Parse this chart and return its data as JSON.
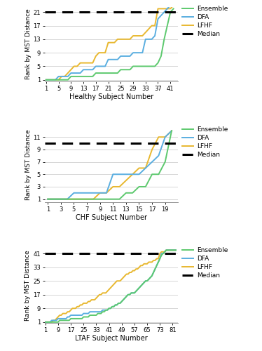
{
  "panel1": {
    "title": "Healthy Subject Number",
    "ylabel": "Rank by MST Distance",
    "n_subjects": 42,
    "median_line": 21,
    "yticks": [
      1,
      5,
      9,
      13,
      17,
      21
    ],
    "xticks": [
      1,
      5,
      9,
      13,
      17,
      21,
      25,
      29,
      33,
      37,
      41
    ],
    "xlim": [
      0.5,
      43.5
    ],
    "ylim": [
      0.5,
      22.5
    ],
    "ensemble_color": "#5dc96e",
    "dfa_color": "#5aaee0",
    "lfhf_color": "#e8b830",
    "median_color": "#000000",
    "ensemble_x": [
      1,
      2,
      3,
      4,
      5,
      6,
      7,
      8,
      9,
      10,
      11,
      12,
      13,
      14,
      15,
      16,
      17,
      18,
      19,
      20,
      21,
      22,
      23,
      24,
      25,
      26,
      27,
      28,
      29,
      30,
      31,
      32,
      33,
      34,
      35,
      36,
      37,
      38,
      39,
      40,
      41,
      42
    ],
    "ensemble_y": [
      1,
      1,
      1,
      1,
      1,
      1,
      1,
      1,
      2,
      2,
      2,
      2,
      2,
      2,
      2,
      2,
      3,
      3,
      3,
      3,
      3,
      3,
      3,
      3,
      4,
      4,
      4,
      4,
      5,
      5,
      5,
      5,
      5,
      5,
      5,
      5,
      6,
      8,
      13,
      17,
      21,
      22
    ],
    "dfa_x": [
      1,
      2,
      3,
      4,
      5,
      6,
      7,
      8,
      9,
      10,
      11,
      12,
      13,
      14,
      15,
      16,
      17,
      18,
      19,
      20,
      21,
      22,
      23,
      24,
      25,
      26,
      27,
      28,
      29,
      30,
      31,
      32,
      33,
      34,
      35,
      36,
      37,
      38,
      39,
      40,
      41,
      42
    ],
    "dfa_y": [
      1,
      1,
      1,
      1,
      2,
      2,
      2,
      2,
      3,
      3,
      3,
      3,
      4,
      4,
      4,
      4,
      5,
      5,
      5,
      5,
      7,
      7,
      7,
      7,
      8,
      8,
      8,
      8,
      9,
      9,
      9,
      9,
      13,
      13,
      13,
      14,
      19,
      20,
      21,
      22,
      23,
      23
    ],
    "lfhf_x": [
      1,
      2,
      3,
      4,
      5,
      6,
      7,
      8,
      9,
      10,
      11,
      12,
      13,
      14,
      15,
      16,
      17,
      18,
      19,
      20,
      21,
      22,
      23,
      24,
      25,
      26,
      27,
      28,
      29,
      30,
      31,
      32,
      33,
      34,
      35,
      36,
      37,
      38,
      39,
      40,
      41,
      42
    ],
    "lfhf_y": [
      1,
      1,
      1,
      1,
      1,
      2,
      2,
      3,
      4,
      5,
      5,
      6,
      6,
      6,
      6,
      6,
      8,
      9,
      9,
      9,
      12,
      12,
      12,
      13,
      13,
      13,
      13,
      13,
      14,
      14,
      14,
      14,
      15,
      16,
      17,
      17,
      22,
      22,
      22,
      22,
      22,
      23
    ]
  },
  "panel2": {
    "title": "CHF Subject Number",
    "ylabel": "Rank by MST Distance",
    "n_subjects": 20,
    "median_line": 10,
    "yticks": [
      1,
      3,
      5,
      7,
      9,
      11
    ],
    "xticks": [
      1,
      3,
      5,
      7,
      9,
      11,
      13,
      15,
      17,
      19
    ],
    "xlim": [
      0.5,
      21.0
    ],
    "ylim": [
      0.5,
      12.5
    ],
    "ensemble_color": "#5dc96e",
    "dfa_color": "#5aaee0",
    "lfhf_color": "#e8b830",
    "median_color": "#000000",
    "ensemble_x": [
      1,
      2,
      3,
      4,
      5,
      6,
      7,
      8,
      9,
      10,
      11,
      12,
      13,
      14,
      15,
      16,
      17,
      18,
      19,
      20
    ],
    "ensemble_y": [
      1,
      1,
      1,
      1,
      1,
      1,
      1,
      1,
      1,
      1,
      1,
      1,
      2,
      2,
      3,
      3,
      5,
      5,
      7,
      12
    ],
    "dfa_x": [
      1,
      2,
      3,
      4,
      5,
      6,
      7,
      8,
      9,
      10,
      11,
      12,
      13,
      14,
      15,
      16,
      17,
      18,
      19,
      20
    ],
    "dfa_y": [
      1,
      1,
      1,
      1,
      2,
      2,
      2,
      2,
      2,
      2,
      5,
      5,
      5,
      5,
      5,
      6,
      7,
      8,
      11,
      12
    ],
    "lfhf_x": [
      1,
      2,
      3,
      4,
      5,
      6,
      7,
      8,
      9,
      10,
      11,
      12,
      13,
      14,
      15,
      16,
      17,
      18,
      19,
      20
    ],
    "lfhf_y": [
      1,
      1,
      1,
      1,
      1,
      1,
      1,
      1,
      2,
      2,
      3,
      3,
      4,
      5,
      6,
      6,
      9,
      11,
      11,
      12
    ]
  },
  "panel3": {
    "title": "LTAF Subject Number",
    "ylabel": "Rank by MST Distance",
    "n_subjects": 83,
    "median_line": 41,
    "yticks": [
      1,
      9,
      17,
      25,
      33,
      41
    ],
    "xticks": [
      1,
      9,
      17,
      25,
      33,
      41,
      49,
      57,
      65,
      73,
      81
    ],
    "xlim": [
      0.5,
      84.5
    ],
    "ylim": [
      0.5,
      44
    ],
    "ensemble_color": "#5dc96e",
    "dfa_color": "#5aaee0",
    "lfhf_color": "#e8b830",
    "median_color": "#000000",
    "ensemble_x": [
      1,
      2,
      3,
      4,
      5,
      6,
      7,
      8,
      9,
      10,
      11,
      12,
      13,
      14,
      15,
      16,
      17,
      18,
      19,
      20,
      21,
      22,
      23,
      24,
      25,
      26,
      27,
      28,
      29,
      30,
      31,
      32,
      33,
      34,
      35,
      36,
      37,
      38,
      39,
      40,
      41,
      42,
      43,
      44,
      45,
      46,
      47,
      48,
      49,
      50,
      51,
      52,
      53,
      54,
      55,
      56,
      57,
      58,
      59,
      60,
      61,
      62,
      63,
      64,
      65,
      66,
      67,
      68,
      69,
      70,
      71,
      72,
      73,
      74,
      75,
      76,
      77,
      78,
      79,
      80,
      81,
      82,
      83
    ],
    "ensemble_y": [
      1,
      1,
      1,
      1,
      1,
      1,
      1,
      1,
      1,
      2,
      2,
      2,
      2,
      2,
      2,
      2,
      3,
      3,
      3,
      3,
      3,
      3,
      3,
      3,
      4,
      4,
      4,
      4,
      5,
      5,
      5,
      5,
      5,
      6,
      6,
      6,
      7,
      7,
      8,
      8,
      9,
      9,
      10,
      10,
      11,
      11,
      12,
      12,
      13,
      14,
      15,
      16,
      17,
      17,
      18,
      18,
      18,
      19,
      20,
      21,
      22,
      23,
      24,
      25,
      25,
      26,
      27,
      28,
      30,
      32,
      34,
      36,
      38,
      40,
      41,
      42,
      43,
      43,
      43,
      43,
      43,
      43,
      43
    ],
    "dfa_x": [
      1,
      2,
      3,
      4,
      5,
      6,
      7,
      8,
      9,
      10,
      11,
      12,
      13,
      14,
      15,
      16,
      17,
      18,
      19,
      20,
      21,
      22,
      23,
      24,
      25,
      26,
      27,
      28,
      29,
      30,
      31,
      32,
      33,
      34,
      35,
      36,
      37,
      38,
      39,
      40,
      41,
      42,
      43,
      44,
      45,
      46,
      47,
      48,
      49,
      50,
      51,
      52,
      53,
      54,
      55,
      56,
      57,
      58,
      59,
      60,
      61,
      62,
      63,
      64,
      65,
      66,
      67,
      68,
      69,
      70,
      71,
      72,
      73,
      74,
      75,
      76,
      77,
      78,
      79,
      80,
      81,
      82,
      83
    ],
    "dfa_y": [
      1,
      1,
      1,
      1,
      2,
      2,
      2,
      2,
      3,
      3,
      3,
      3,
      3,
      3,
      4,
      4,
      5,
      5,
      5,
      5,
      5,
      5,
      5,
      5,
      6,
      6,
      6,
      6,
      7,
      7,
      7,
      7,
      7,
      7,
      7,
      7,
      8,
      8,
      8,
      8,
      9,
      9,
      10,
      10,
      11,
      11,
      12,
      12,
      13,
      14,
      15,
      16,
      17,
      17,
      18,
      18,
      18,
      19,
      20,
      21,
      22,
      23,
      24,
      25,
      25,
      26,
      27,
      28,
      30,
      32,
      34,
      36,
      38,
      41,
      41,
      42,
      43,
      43,
      43,
      43,
      43,
      43,
      43
    ],
    "lfhf_x": [
      1,
      2,
      3,
      4,
      5,
      6,
      7,
      8,
      9,
      10,
      11,
      12,
      13,
      14,
      15,
      16,
      17,
      18,
      19,
      20,
      21,
      22,
      23,
      24,
      25,
      26,
      27,
      28,
      29,
      30,
      31,
      32,
      33,
      34,
      35,
      36,
      37,
      38,
      39,
      40,
      41,
      42,
      43,
      44,
      45,
      46,
      47,
      48,
      49,
      50,
      51,
      52,
      53,
      54,
      55,
      56,
      57,
      58,
      59,
      60,
      61,
      62,
      63,
      64,
      65,
      66,
      67,
      68,
      69,
      70,
      71,
      72,
      73,
      74,
      75,
      76,
      77,
      78,
      79,
      80,
      81,
      82,
      83
    ],
    "lfhf_y": [
      1,
      1,
      1,
      1,
      1,
      2,
      2,
      3,
      4,
      5,
      5,
      6,
      6,
      6,
      7,
      7,
      8,
      9,
      9,
      9,
      10,
      10,
      11,
      11,
      12,
      12,
      12,
      13,
      13,
      14,
      14,
      14,
      15,
      16,
      17,
      17,
      18,
      18,
      18,
      19,
      20,
      21,
      22,
      23,
      24,
      25,
      25,
      25,
      26,
      27,
      28,
      29,
      29,
      30,
      30,
      31,
      31,
      32,
      32,
      33,
      34,
      34,
      35,
      35,
      35,
      36,
      36,
      36,
      37,
      37,
      38,
      38,
      41,
      42,
      42,
      42,
      43,
      43,
      43,
      43,
      43,
      43,
      43
    ]
  },
  "background_color": "#ffffff",
  "grid_color": "#d0d0d0",
  "line_width": 1.4
}
